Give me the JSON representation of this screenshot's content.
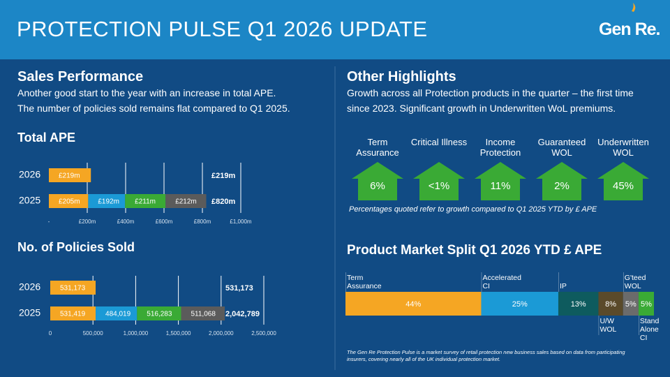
{
  "header": {
    "title": "PROTECTION PULSE Q1 2026 UPDATE",
    "logo": "Gen Re."
  },
  "sales": {
    "title": "Sales Performance",
    "text": [
      "Another good start to the year with an increase in total APE.",
      "The number of policies sold remains flat compared to Q1 2025."
    ]
  },
  "highlights": {
    "title": "Other Highlights",
    "text": [
      "Growth across all Protection products in the quarter – the first time",
      "since 2023. Significant growth in Underwritten WoL premiums."
    ],
    "items": [
      {
        "label": "Term Assurance",
        "value": "6%"
      },
      {
        "label": "Critical Illness",
        "value": "<1%"
      },
      {
        "label": "Income Protection",
        "value": "11%"
      },
      {
        "label": "Guaranteed WOL",
        "value": "2%"
      },
      {
        "label": "Underwritten WOL",
        "value": "45%"
      }
    ],
    "note": "Percentages quoted refer to growth compared to Q1 2025 YTD by £ APE"
  },
  "chart_data": [
    {
      "type": "bar",
      "title": "Total APE",
      "categories": [
        "2026",
        "2025"
      ],
      "series": [
        {
          "color": "#f5a623",
          "values": [
            219,
            205
          ],
          "value_labels": [
            "£219m",
            "£205m"
          ]
        },
        {
          "color": "#1b9ad6",
          "values": [
            null,
            192
          ],
          "value_labels": [
            null,
            "£192m"
          ]
        },
        {
          "color": "#3aaa35",
          "values": [
            null,
            211
          ],
          "value_labels": [
            null,
            "£211m"
          ]
        },
        {
          "color": "#5b5b5b",
          "values": [
            null,
            212
          ],
          "value_labels": [
            null,
            "£212m"
          ]
        }
      ],
      "totals": [
        219,
        820
      ],
      "total_labels": [
        "£219m",
        "£820m"
      ],
      "xlim": [
        0,
        1000
      ],
      "xticks": [
        {
          "value": 0,
          "label": "-"
        },
        {
          "value": 200,
          "label": "£200m"
        },
        {
          "value": 400,
          "label": "£400m"
        },
        {
          "value": 600,
          "label": "£600m"
        },
        {
          "value": 800,
          "label": "£800m"
        },
        {
          "value": 1000,
          "label": "£1,000m"
        }
      ],
      "grid": true
    },
    {
      "type": "bar",
      "title": "No. of Policies Sold",
      "categories": [
        "2026",
        "2025"
      ],
      "series": [
        {
          "color": "#f5a623",
          "values": [
            531173,
            531419
          ],
          "value_labels": [
            "531,173",
            "531,419"
          ]
        },
        {
          "color": "#1b9ad6",
          "values": [
            null,
            484019
          ],
          "value_labels": [
            null,
            "484,019"
          ]
        },
        {
          "color": "#3aaa35",
          "values": [
            null,
            516283
          ],
          "value_labels": [
            null,
            "516,283"
          ]
        },
        {
          "color": "#5b5b5b",
          "values": [
            null,
            511068
          ],
          "value_labels": [
            null,
            "511,068"
          ]
        }
      ],
      "totals": [
        531173,
        2042789
      ],
      "total_labels": [
        "531,173",
        "2,042,789"
      ],
      "xlim": [
        0,
        2500000
      ],
      "xticks": [
        0,
        {
          "value": 500000,
          "label": "500,000"
        },
        {
          "value": 1000000,
          "label": "1,000,000"
        },
        {
          "value": 1500000,
          "label": "1,500,000"
        },
        {
          "value": 2000000,
          "label": "2,000,000"
        },
        {
          "value": 2500000,
          "label": "2,500,000"
        }
      ],
      "grid": true
    },
    {
      "type": "stacked",
      "title": "Product Market Split Q1 2026 YTD £ APE",
      "categories": [
        "Term Assurance",
        "Accelerated CI",
        "IP",
        "U/W WOL",
        "G'teed WOL",
        "Stand Alone CI"
      ],
      "values": [
        44,
        25,
        13,
        8,
        5,
        5
      ],
      "value_labels": [
        "44%",
        "25%",
        "13%",
        "8%",
        "5%",
        "5%"
      ],
      "colors": [
        "#f5a623",
        "#1b9ad6",
        "#0e5b5e",
        "#5a4a2a",
        "#6b6b6b",
        "#3aaa35"
      ],
      "label_positions": [
        "above",
        "above",
        "above",
        "below",
        "above",
        "below"
      ],
      "xlim": [
        0,
        100
      ]
    }
  ],
  "footnote": "The Gen Re Protection Pulse is a market survey of retail protection new business sales based on data from participating insurers, covering nearly all of the UK individual protection market."
}
